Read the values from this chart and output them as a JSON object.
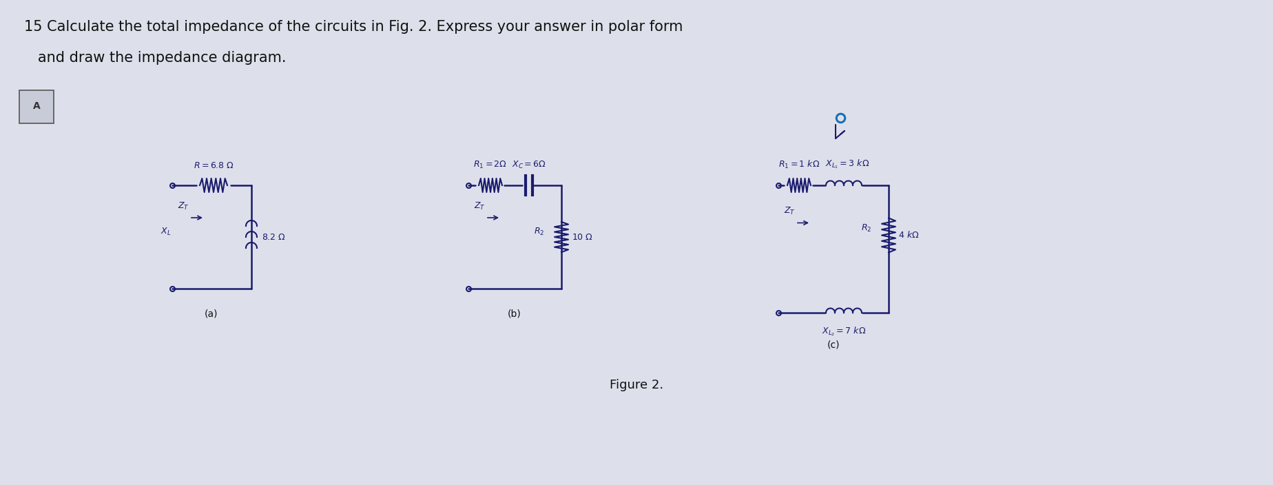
{
  "bg_color": "#dde0ea",
  "text_color": "#1a1a6e",
  "circuit_color": "#1a1a6e",
  "title_line1": "15 Calculate the total impedance of the circuits in Fig. 2. Express your answer in polar form",
  "title_line2": "   and draw the impedance diagram.",
  "figure_label": "Figure 2.",
  "circuit_a_label": "(a)",
  "circuit_b_label": "(b)",
  "circuit_c_label": "(c)",
  "font_title": 15,
  "font_label": 10,
  "font_component": 9
}
